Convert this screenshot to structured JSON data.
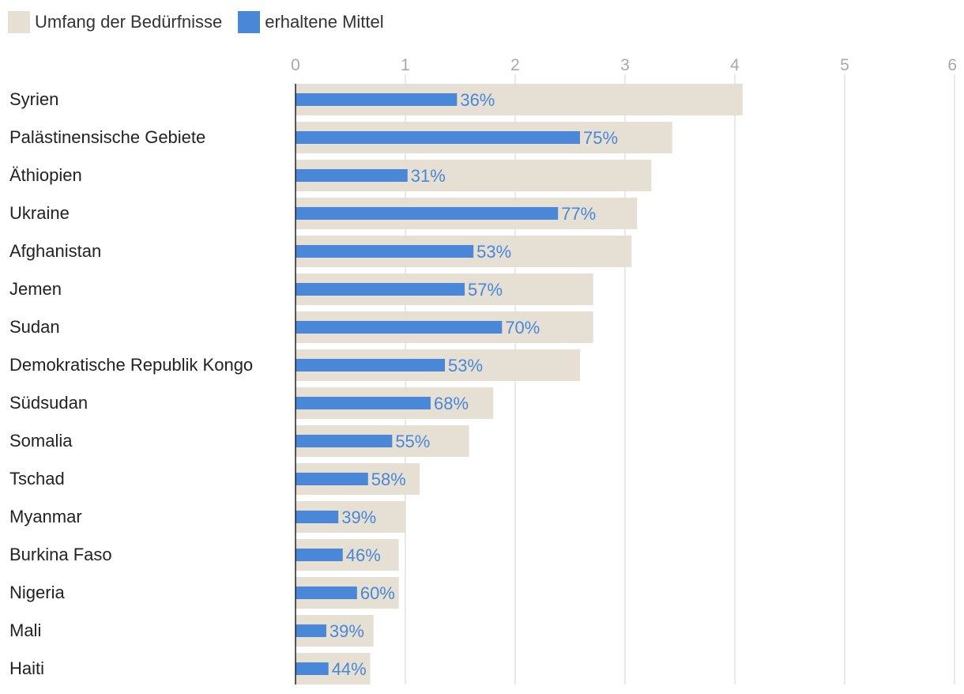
{
  "legend": [
    {
      "label": "Umfang der Bedürfnisse",
      "color": "#e5dfd4"
    },
    {
      "label": "erhaltene Mittel",
      "color": "#4a87d6"
    }
  ],
  "chart_data": {
    "type": "bar",
    "orientation": "horizontal",
    "title": "",
    "xlim": [
      0,
      6
    ],
    "ticks": [
      "0",
      "1",
      "2",
      "3",
      "4",
      "5",
      "6"
    ],
    "grid": true,
    "categories": [
      "Syrien",
      "Palästinensische Gebiete",
      "Äthiopien",
      "Ukraine",
      "Afghanistan",
      "Jemen",
      "Sudan",
      "Demokratische Republik Kongo",
      "Südsudan",
      "Somalia",
      "Tschad",
      "Myanmar",
      "Burkina Faso",
      "Nigeria",
      "Mali",
      "Haiti"
    ],
    "series": [
      {
        "name": "Umfang der Bedürfnisse",
        "color": "#e5dfd4",
        "values": [
          4.07,
          3.43,
          3.24,
          3.11,
          3.06,
          2.71,
          2.71,
          2.59,
          1.8,
          1.58,
          1.13,
          1.0,
          0.94,
          0.94,
          0.71,
          0.68
        ]
      },
      {
        "name": "erhaltene Mittel",
        "color": "#4a87d6",
        "values": [
          1.47,
          2.59,
          1.02,
          2.39,
          1.62,
          1.54,
          1.88,
          1.36,
          1.23,
          0.88,
          0.66,
          0.39,
          0.43,
          0.56,
          0.28,
          0.3
        ]
      }
    ],
    "data_labels": [
      "36%",
      "75%",
      "31%",
      "77%",
      "53%",
      "57%",
      "70%",
      "53%",
      "68%",
      "55%",
      "58%",
      "39%",
      "46%",
      "60%",
      "39%",
      "44%"
    ]
  }
}
